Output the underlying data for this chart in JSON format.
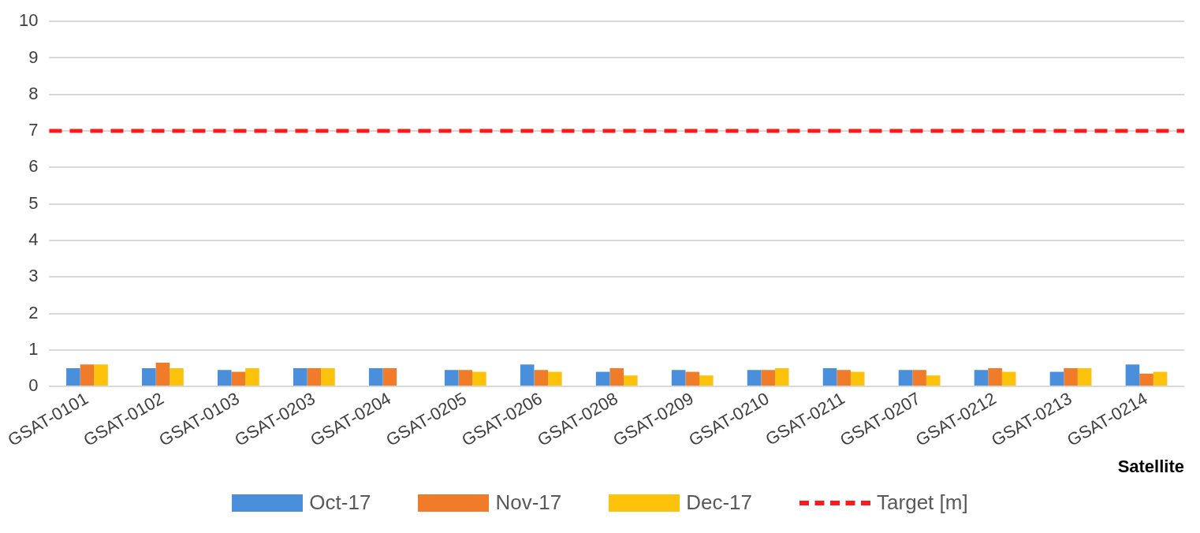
{
  "chart_data": {
    "type": "bar",
    "xlabel": "Satellite",
    "categories": [
      "GSAT-0101",
      "GSAT-0102",
      "GSAT-0103",
      "GSAT-0203",
      "GSAT-0204",
      "GSAT-0205",
      "GSAT-0206",
      "GSAT-0208",
      "GSAT-0209",
      "GSAT-0210",
      "GSAT-0211",
      "GSAT-0207",
      "GSAT-0212",
      "GSAT-0213",
      "GSAT-0214"
    ],
    "series": [
      {
        "name": "Oct-17",
        "color": "#4a8fdb",
        "values": [
          0.5,
          0.5,
          0.45,
          0.5,
          0.5,
          0.45,
          0.6,
          0.4,
          0.45,
          0.45,
          0.5,
          0.45,
          0.45,
          0.4,
          0.6
        ]
      },
      {
        "name": "Nov-17",
        "color": "#f07c2a",
        "values": [
          0.6,
          0.65,
          0.4,
          0.5,
          0.5,
          0.45,
          0.45,
          0.5,
          0.4,
          0.45,
          0.45,
          0.45,
          0.5,
          0.5,
          0.35
        ]
      },
      {
        "name": "Dec-17",
        "color": "#fdc20a",
        "values": [
          0.6,
          0.5,
          0.5,
          0.5,
          null,
          0.4,
          0.4,
          0.3,
          0.3,
          0.5,
          0.4,
          0.3,
          0.4,
          0.5,
          0.4
        ]
      }
    ],
    "ref_lines": [
      {
        "axis": "y",
        "value": 7,
        "label": "Target [m]",
        "color": "#ff1a1a",
        "line_style": "dashed"
      }
    ],
    "ylim": [
      0,
      10
    ],
    "yticks": [
      0,
      1,
      2,
      3,
      4,
      5,
      6,
      7,
      8,
      9,
      10
    ],
    "grid": "y",
    "legend": "bottom"
  }
}
